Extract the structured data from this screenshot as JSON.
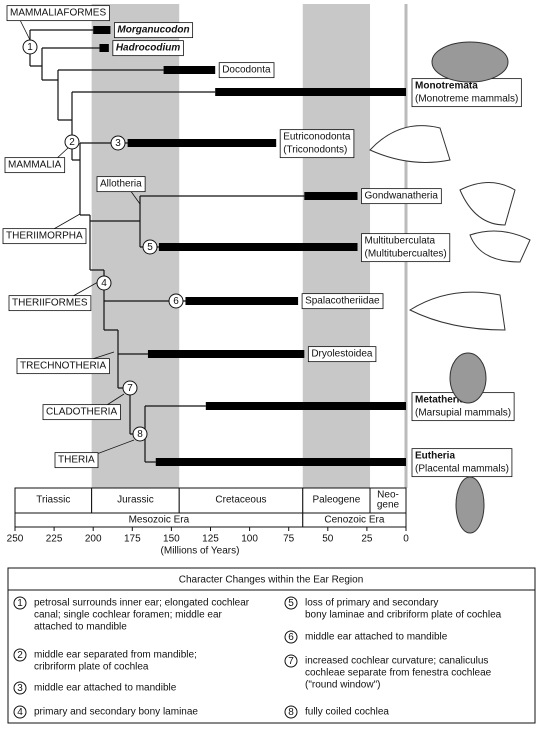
{
  "axis": {
    "ticks": [
      250,
      225,
      200,
      175,
      150,
      125,
      100,
      75,
      50,
      25,
      0
    ],
    "label": "(Millions of Years)",
    "periods": [
      {
        "lines": [
          "Triassic"
        ],
        "start": 252,
        "end": 201,
        "shaded": false
      },
      {
        "lines": [
          "Jurassic"
        ],
        "start": 201,
        "end": 145,
        "shaded": true
      },
      {
        "lines": [
          "Cretaceous"
        ],
        "start": 145,
        "end": 66,
        "shaded": false
      },
      {
        "lines": [
          "Paleogene"
        ],
        "start": 66,
        "end": 23,
        "shaded": true
      },
      {
        "lines": [
          "Neo-",
          "gene"
        ],
        "start": 23,
        "end": 0,
        "shaded": false
      }
    ],
    "eras": [
      {
        "name": "Mesozoic Era",
        "start": 252,
        "end": 66
      },
      {
        "name": "Cenozoic Era",
        "start": 66,
        "end": 0
      }
    ]
  },
  "taxa": [
    {
      "name": "Morganucodon",
      "range": [
        200,
        189
      ]
    },
    {
      "name": "Hadrocodium",
      "range": [
        196,
        190
      ]
    },
    {
      "name": "Docodonta",
      "range": [
        155,
        122
      ]
    },
    {
      "name": "Monotremata",
      "common": "(Monotreme mammals)",
      "range": [
        122,
        0
      ]
    },
    {
      "name": "Eutriconodonta",
      "common": "(Triconodonts)",
      "range": [
        178,
        83
      ]
    },
    {
      "name": "Gondwanatheria",
      "range": [
        65,
        31
      ]
    },
    {
      "name": "Multituberculata",
      "common": "(Multitubercualtes)",
      "range": [
        158,
        31
      ]
    },
    {
      "name": "Spalacotheriidae",
      "range": [
        141,
        69
      ]
    },
    {
      "name": "Dryolestoidea",
      "range": [
        165,
        65
      ]
    },
    {
      "name": "Metatheria",
      "common": "(Marsupial mammals)",
      "range": [
        128,
        0
      ]
    },
    {
      "name": "Eutheria",
      "common": "(Placental mammals)",
      "range": [
        160,
        0
      ]
    }
  ],
  "clades": [
    "MAMMALIAFORMES",
    "MAMMALIA",
    "THERIIMORPHA",
    "THERIIFORMES",
    "TRECHNOTHERIA",
    "CLADOTHERIA",
    "THERIA",
    "Allotheria"
  ],
  "nodes": [
    "1",
    "2",
    "3",
    "4",
    "5",
    "6",
    "7",
    "8"
  ],
  "legend": {
    "title": "Character Changes within the Ear Region",
    "items": [
      {
        "number": "1",
        "lines": [
          "petrosal surrounds inner ear; elongated cochlear",
          "canal; single cochlear foramen; middle ear",
          "attached to mandible"
        ]
      },
      {
        "number": "2",
        "lines": [
          "middle ear separated from mandible;",
          "cribriform plate of cochlea"
        ]
      },
      {
        "number": "3",
        "lines": [
          "middle ear attached to mandible"
        ]
      },
      {
        "number": "4",
        "lines": [
          "primary and secondary bony laminae"
        ]
      },
      {
        "number": "5",
        "lines": [
          "loss of primary and secondary",
          "bony laminae and cribriform plate of cochlea"
        ]
      },
      {
        "number": "6",
        "lines": [
          "middle ear attached to mandible"
        ]
      },
      {
        "number": "7",
        "lines": [
          " increased cochlear curvature; canaliculus",
          "cochleae separate from fenestra cochleae",
          "(\"round window\")"
        ]
      },
      {
        "number": "8",
        "lines": [
          "fully coiled cochlea"
        ]
      }
    ]
  }
}
